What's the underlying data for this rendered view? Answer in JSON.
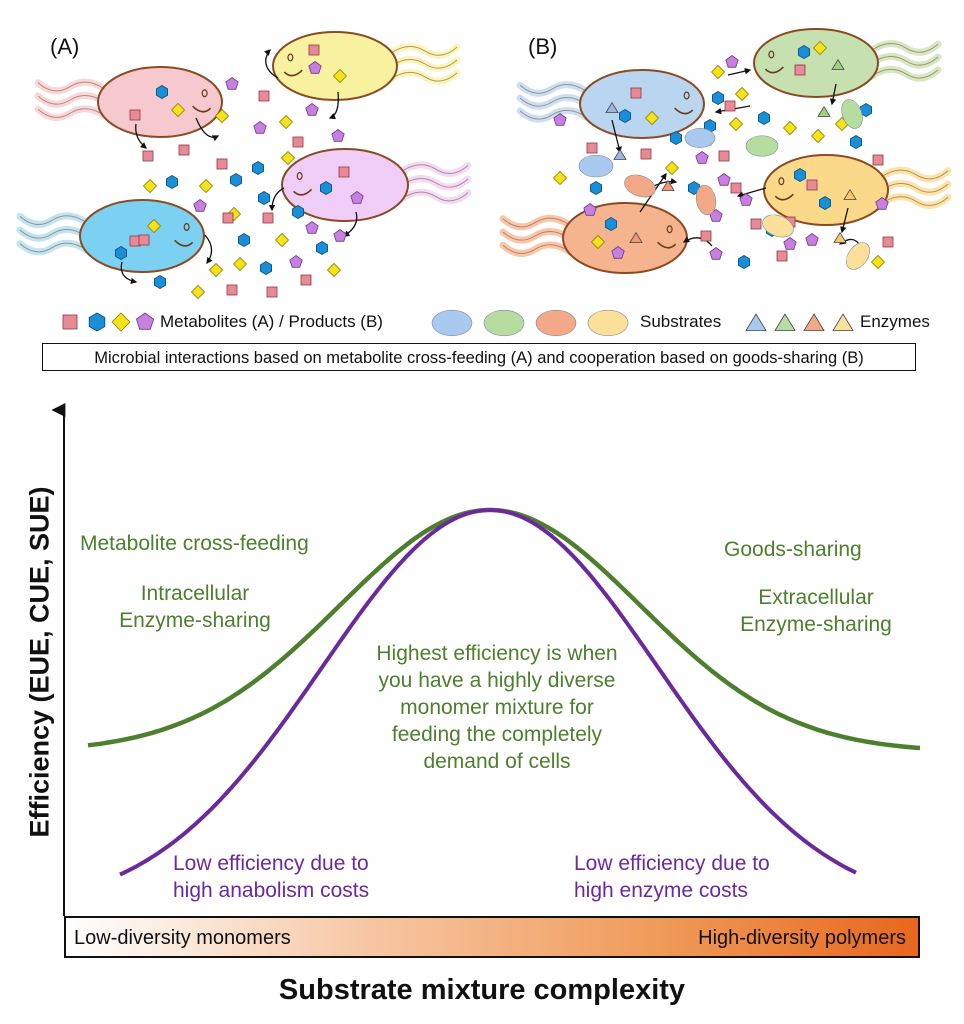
{
  "panels": {
    "a_label": "(A)",
    "b_label": "(B)"
  },
  "legend": {
    "metabolites_label": "Metabolites (A) / Products (B)",
    "substrates_label": "Substrates",
    "enzymes_label": "Enzymes"
  },
  "caption": "Microbial interactions based on metabolite cross-feeding (A) and cooperation based on goods-sharing (B)",
  "annotations": {
    "left_1": "Metabolite cross-feeding",
    "left_2a": "Intracellular",
    "left_2b": "Enzyme-sharing",
    "right_1": "Goods-sharing",
    "right_2a": "Extracellular",
    "right_2b": "Enzyme-sharing",
    "center_lines": [
      "Highest efficiency is when",
      "you have a highly diverse",
      "monomer mixture for",
      "feeding the completely",
      "demand of cells"
    ],
    "low_left": [
      "Low efficiency due to",
      "high anabolism costs"
    ],
    "low_right": [
      "Low efficiency due to",
      "high enzyme costs"
    ]
  },
  "axes": {
    "y_title": "Efficiency (EUE, CUE, SUE)",
    "x_title": "Substrate mixture complexity",
    "bar_left": "Low-diversity monomers",
    "bar_right": "High-diversity polymers"
  },
  "colors": {
    "green_curve": "#4d7f2f",
    "purple_curve": "#6a2a9c",
    "metabolite_square": "#e88a96",
    "metabolite_hexagon": "#1a8fd8",
    "metabolite_diamond": "#f6e21a",
    "metabolite_pentagon": "#c77fe0",
    "cell_pink": "#f6c9cf",
    "cell_yellow": "#f8f2a0",
    "cell_blue": "#7cd0f2",
    "cell_lilac": "#efcdf6",
    "cell_lightblue": "#b9d5f0",
    "cell_green": "#c7e0b0",
    "cell_orange": "#f5b48e",
    "cell_gold": "#fbd98b",
    "substrate_blue": "#a9c9ef",
    "substrate_green": "#b7dca0",
    "substrate_orange": "#f3a988",
    "substrate_yellow": "#fbe09a"
  },
  "icons": [
    "square-icon",
    "hexagon-icon",
    "diamond-icon",
    "pentagon-icon",
    "cloud-substrate-icon",
    "triangle-enzyme-icon",
    "microbe-cell-icon"
  ]
}
